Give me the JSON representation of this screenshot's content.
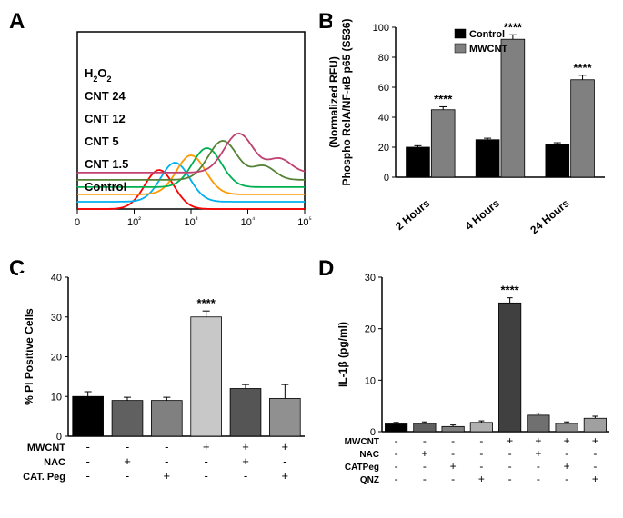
{
  "panelA": {
    "label": "A",
    "type": "histogram-overlay",
    "traces": [
      {
        "name": "Control",
        "color": "#ff0000",
        "label_y": 180
      },
      {
        "name": "CNT 1.5",
        "color": "#00b0f0",
        "label_y": 155
      },
      {
        "name": "CNT 5",
        "color": "#ff9900",
        "label_y": 130
      },
      {
        "name": "CNT 12",
        "color": "#00b050",
        "label_y": 105
      },
      {
        "name": "CNT 24",
        "color": "#548235",
        "label_y": 80
      },
      {
        "name": "H₂O₂",
        "color": "#c04070",
        "label_y": 55
      }
    ],
    "x_ticks": [
      "0",
      "10²",
      "10³",
      "10⁴",
      "10⁵"
    ]
  },
  "panelB": {
    "label": "B",
    "type": "bar",
    "ylabel": "Phospho RelA/NF-κB p65 (S536)\n(Normalized RFU)",
    "ylim": [
      0,
      100
    ],
    "ytick_step": 20,
    "legend": [
      {
        "label": "Control",
        "color": "#000000"
      },
      {
        "label": "MWCNT",
        "color": "#808080"
      }
    ],
    "categories": [
      "2 Hours",
      "4 Hours",
      "24 Hours"
    ],
    "series": [
      {
        "color": "#000000",
        "vals": [
          20,
          25,
          22
        ],
        "err": [
          1,
          1,
          1
        ]
      },
      {
        "color": "#808080",
        "vals": [
          45,
          92,
          65
        ],
        "err": [
          2,
          3,
          3
        ],
        "sig": [
          "****",
          "****",
          "****"
        ]
      }
    ],
    "bar_width": 0.42
  },
  "panelC": {
    "label": "C",
    "type": "bar",
    "ylabel": "% PI Positive Cells",
    "ylim": [
      0,
      40
    ],
    "ytick_step": 10,
    "bars": [
      {
        "val": 10,
        "err": 1.2,
        "color": "#000000"
      },
      {
        "val": 9,
        "err": 0.8,
        "color": "#606060"
      },
      {
        "val": 9,
        "err": 0.8,
        "color": "#808080"
      },
      {
        "val": 30,
        "err": 1.5,
        "color": "#c8c8c8",
        "sig": "****"
      },
      {
        "val": 12,
        "err": 1.0,
        "color": "#555555"
      },
      {
        "val": 9.5,
        "err": 3.5,
        "color": "#909090"
      }
    ],
    "condition_rows": [
      {
        "label": "MWCNT",
        "vals": [
          "-",
          "-",
          "-",
          "+",
          "+",
          "+"
        ]
      },
      {
        "label": "NAC",
        "vals": [
          "-",
          "+",
          "-",
          "-",
          "+",
          "-"
        ]
      },
      {
        "label": "CAT. Peg",
        "vals": [
          "-",
          "-",
          "+",
          "-",
          "-",
          "+"
        ]
      }
    ]
  },
  "panelD": {
    "label": "D",
    "type": "bar",
    "ylabel": "IL-1β (pg/ml)",
    "ylim": [
      0,
      30
    ],
    "ytick_step": 10,
    "bars": [
      {
        "val": 1.5,
        "err": 0.3,
        "color": "#000000"
      },
      {
        "val": 1.6,
        "err": 0.3,
        "color": "#606060"
      },
      {
        "val": 1.0,
        "err": 0.3,
        "color": "#808080"
      },
      {
        "val": 1.8,
        "err": 0.3,
        "color": "#b0b0b0"
      },
      {
        "val": 25,
        "err": 1.0,
        "color": "#404040",
        "sig": "****"
      },
      {
        "val": 3.2,
        "err": 0.4,
        "color": "#707070"
      },
      {
        "val": 1.6,
        "err": 0.3,
        "color": "#909090"
      },
      {
        "val": 2.6,
        "err": 0.4,
        "color": "#a0a0a0"
      }
    ],
    "condition_rows": [
      {
        "label": "MWCNT",
        "vals": [
          "-",
          "-",
          "-",
          "-",
          "+",
          "+",
          "+",
          "+"
        ]
      },
      {
        "label": "NAC",
        "vals": [
          "-",
          "+",
          "-",
          "-",
          "-",
          "+",
          "-",
          "-"
        ]
      },
      {
        "label": "CATPeg",
        "vals": [
          "-",
          "-",
          "+",
          "-",
          "-",
          "-",
          "+",
          "-"
        ]
      },
      {
        "label": "QNZ",
        "vals": [
          "-",
          "-",
          "-",
          "+",
          "-",
          "-",
          "-",
          "+"
        ]
      }
    ]
  }
}
